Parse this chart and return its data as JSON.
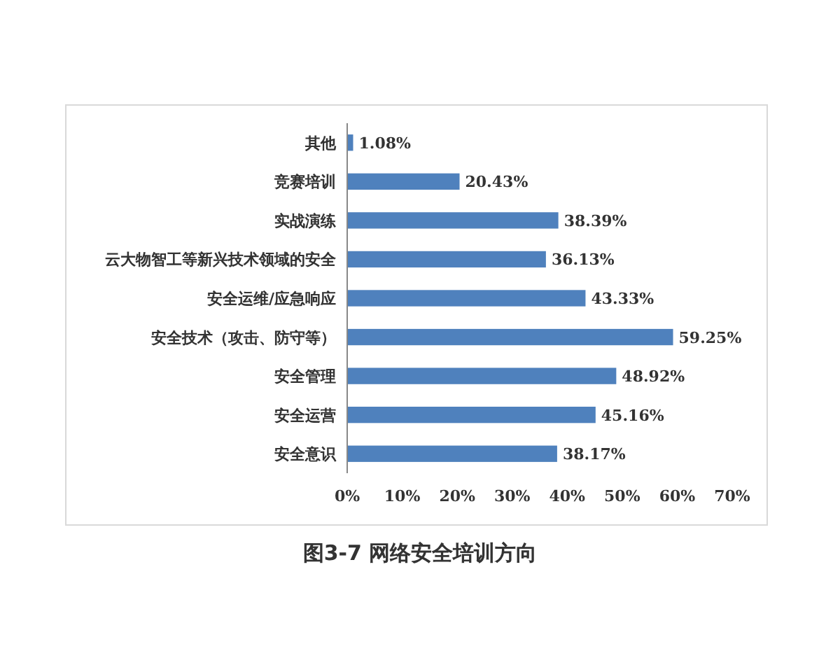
{
  "chart_data": {
    "type": "bar",
    "orientation": "horizontal",
    "title": "图3-7 网络安全培训方向",
    "categories": [
      "其他",
      "竞赛培训",
      "实战演练",
      "云大物智工等新兴技术领域的安全",
      "安全运维/应急响应",
      "安全技术（攻击、防守等）",
      "安全管理",
      "安全运营",
      "安全意识"
    ],
    "values": [
      1.08,
      20.43,
      38.39,
      36.13,
      43.33,
      59.25,
      48.92,
      45.16,
      38.17
    ],
    "value_labels": [
      "1.08%",
      "20.43%",
      "38.39%",
      "36.13%",
      "43.33%",
      "59.25%",
      "48.92%",
      "45.16%",
      "38.17%"
    ],
    "color": "#4f81bd",
    "xlim": [
      0,
      70
    ],
    "xticks": [
      {
        "value": 0,
        "label": "0%"
      },
      {
        "value": 10,
        "label": "10%"
      },
      {
        "value": 20,
        "label": "20%"
      },
      {
        "value": 30,
        "label": "30%"
      },
      {
        "value": 40,
        "label": "40%"
      },
      {
        "value": 50,
        "label": "50%"
      },
      {
        "value": 60,
        "label": "60%"
      },
      {
        "value": 70,
        "label": "70%"
      }
    ],
    "grid": false
  }
}
